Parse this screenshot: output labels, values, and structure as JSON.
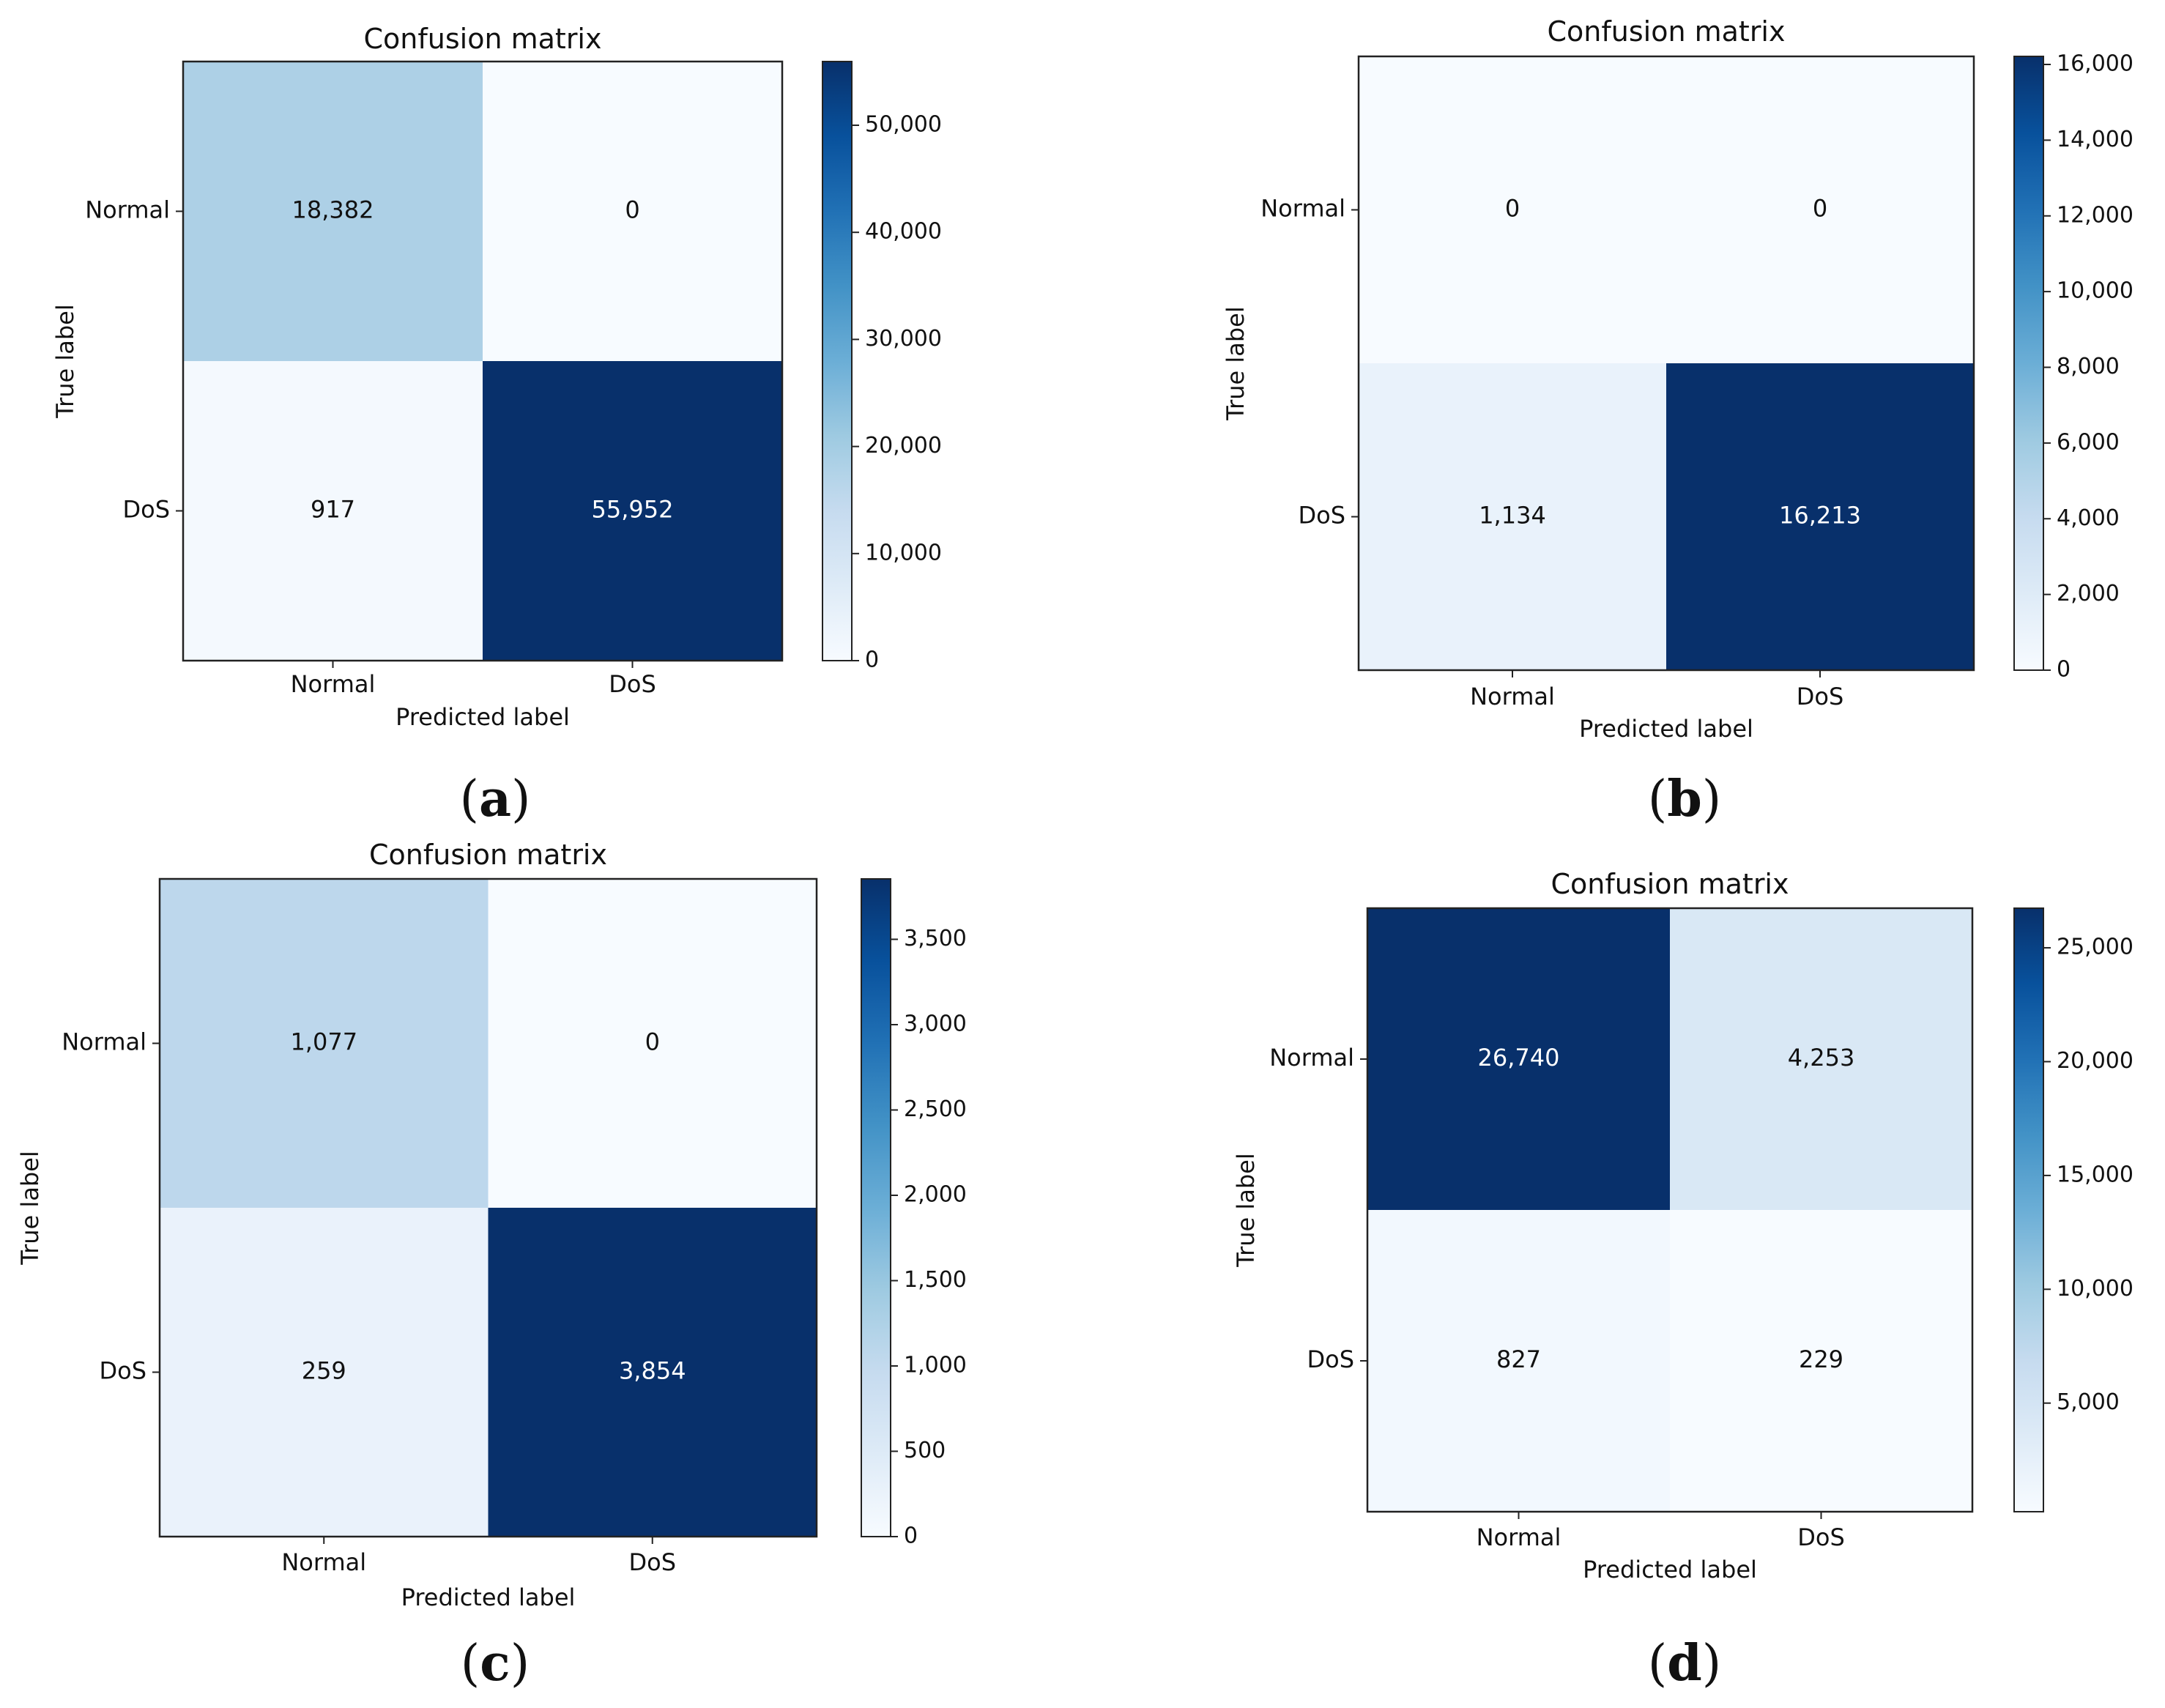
{
  "chart_data": [
    {
      "type": "heatmap",
      "panel": "a",
      "title": "Confusion matrix",
      "xlabel": "Predicted label",
      "ylabel": "True label",
      "x_categories": [
        "Normal",
        "DoS"
      ],
      "y_categories": [
        "Normal",
        "DoS"
      ],
      "values": [
        [
          18382,
          0
        ],
        [
          917,
          55952
        ]
      ],
      "value_labels": [
        [
          "18,382",
          "0"
        ],
        [
          "917",
          "55,952"
        ]
      ],
      "colorbar": {
        "min": 0,
        "max": 55952,
        "ticks": [
          0,
          10000,
          20000,
          30000,
          40000,
          50000
        ],
        "tick_labels": [
          "0",
          "10,000",
          "20,000",
          "30,000",
          "40,000",
          "50,000"
        ]
      },
      "caption": "a"
    },
    {
      "type": "heatmap",
      "panel": "b",
      "title": "Confusion matrix",
      "xlabel": "Predicted label",
      "ylabel": "True label",
      "x_categories": [
        "Normal",
        "DoS"
      ],
      "y_categories": [
        "Normal",
        "DoS"
      ],
      "values": [
        [
          0,
          0
        ],
        [
          1134,
          16213
        ]
      ],
      "value_labels": [
        [
          "0",
          "0"
        ],
        [
          "1,134",
          "16,213"
        ]
      ],
      "colorbar": {
        "min": 0,
        "max": 16213,
        "ticks": [
          0,
          2000,
          4000,
          6000,
          8000,
          10000,
          12000,
          14000,
          16000
        ],
        "tick_labels": [
          "0",
          "2,000",
          "4,000",
          "6,000",
          "8,000",
          "10,000",
          "12,000",
          "14,000",
          "16,000"
        ]
      },
      "caption": "b"
    },
    {
      "type": "heatmap",
      "panel": "c",
      "title": "Confusion matrix",
      "xlabel": "Predicted label",
      "ylabel": "True label",
      "x_categories": [
        "Normal",
        "DoS"
      ],
      "y_categories": [
        "Normal",
        "DoS"
      ],
      "values": [
        [
          1077,
          0
        ],
        [
          259,
          3854
        ]
      ],
      "value_labels": [
        [
          "1,077",
          "0"
        ],
        [
          "259",
          "3,854"
        ]
      ],
      "colorbar": {
        "min": 0,
        "max": 3854,
        "ticks": [
          0,
          500,
          1000,
          1500,
          2000,
          2500,
          3000,
          3500
        ],
        "tick_labels": [
          "0",
          "500",
          "1,000",
          "1,500",
          "2,000",
          "2,500",
          "3,000",
          "3,500"
        ]
      },
      "caption": "c"
    },
    {
      "type": "heatmap",
      "panel": "d",
      "title": "Confusion matrix",
      "xlabel": "Predicted label",
      "ylabel": "True label",
      "x_categories": [
        "Normal",
        "DoS"
      ],
      "y_categories": [
        "Normal",
        "DoS"
      ],
      "values": [
        [
          26740,
          4253
        ],
        [
          827,
          229
        ]
      ],
      "value_labels": [
        [
          "26,740",
          "4,253"
        ],
        [
          "827",
          "229"
        ]
      ],
      "colorbar": {
        "min": 229,
        "max": 26740,
        "ticks": [
          5000,
          10000,
          15000,
          20000,
          25000
        ],
        "tick_labels": [
          "5,000",
          "10,000",
          "15,000",
          "20,000",
          "25,000"
        ]
      },
      "caption": "d"
    }
  ],
  "colors": {
    "low": "#f7fbff",
    "high": "#08306b"
  }
}
